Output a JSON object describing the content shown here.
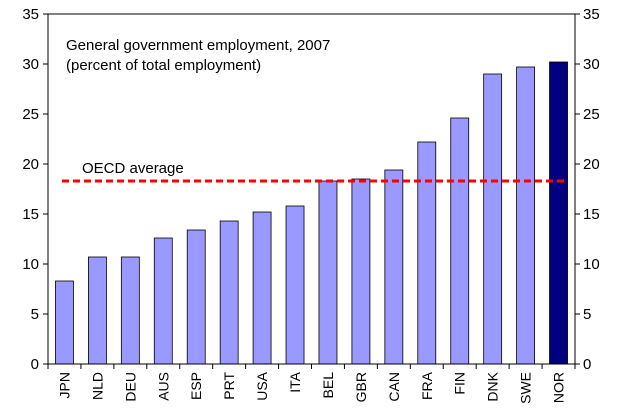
{
  "chart_data": {
    "type": "bar",
    "title_line1": "General government employment, 2007",
    "title_line2": "(percent of total employment)",
    "xlabel": "",
    "ylabel": "",
    "ylim": [
      0,
      35
    ],
    "yticks": [
      0,
      5,
      10,
      15,
      20,
      25,
      30,
      35
    ],
    "secondary_axis": true,
    "grid": false,
    "categories": [
      "JPN",
      "NLD",
      "DEU",
      "AUS",
      "ESP",
      "PRT",
      "USA",
      "ITA",
      "BEL",
      "GBR",
      "CAN",
      "FRA",
      "FIN",
      "DNK",
      "SWE",
      "NOR"
    ],
    "values": [
      8.3,
      10.7,
      10.7,
      12.6,
      13.4,
      14.3,
      15.2,
      15.8,
      18.3,
      18.5,
      19.4,
      22.2,
      24.6,
      29.0,
      29.7,
      30.2
    ],
    "highlight_category": "NOR",
    "reference_line": {
      "label": "OECD average",
      "value": 18.3,
      "style": "dashed",
      "color": "#ff0000"
    },
    "colors": {
      "bar": "#9999ff",
      "highlight": "#000080",
      "bar_edge": "#000000"
    }
  }
}
